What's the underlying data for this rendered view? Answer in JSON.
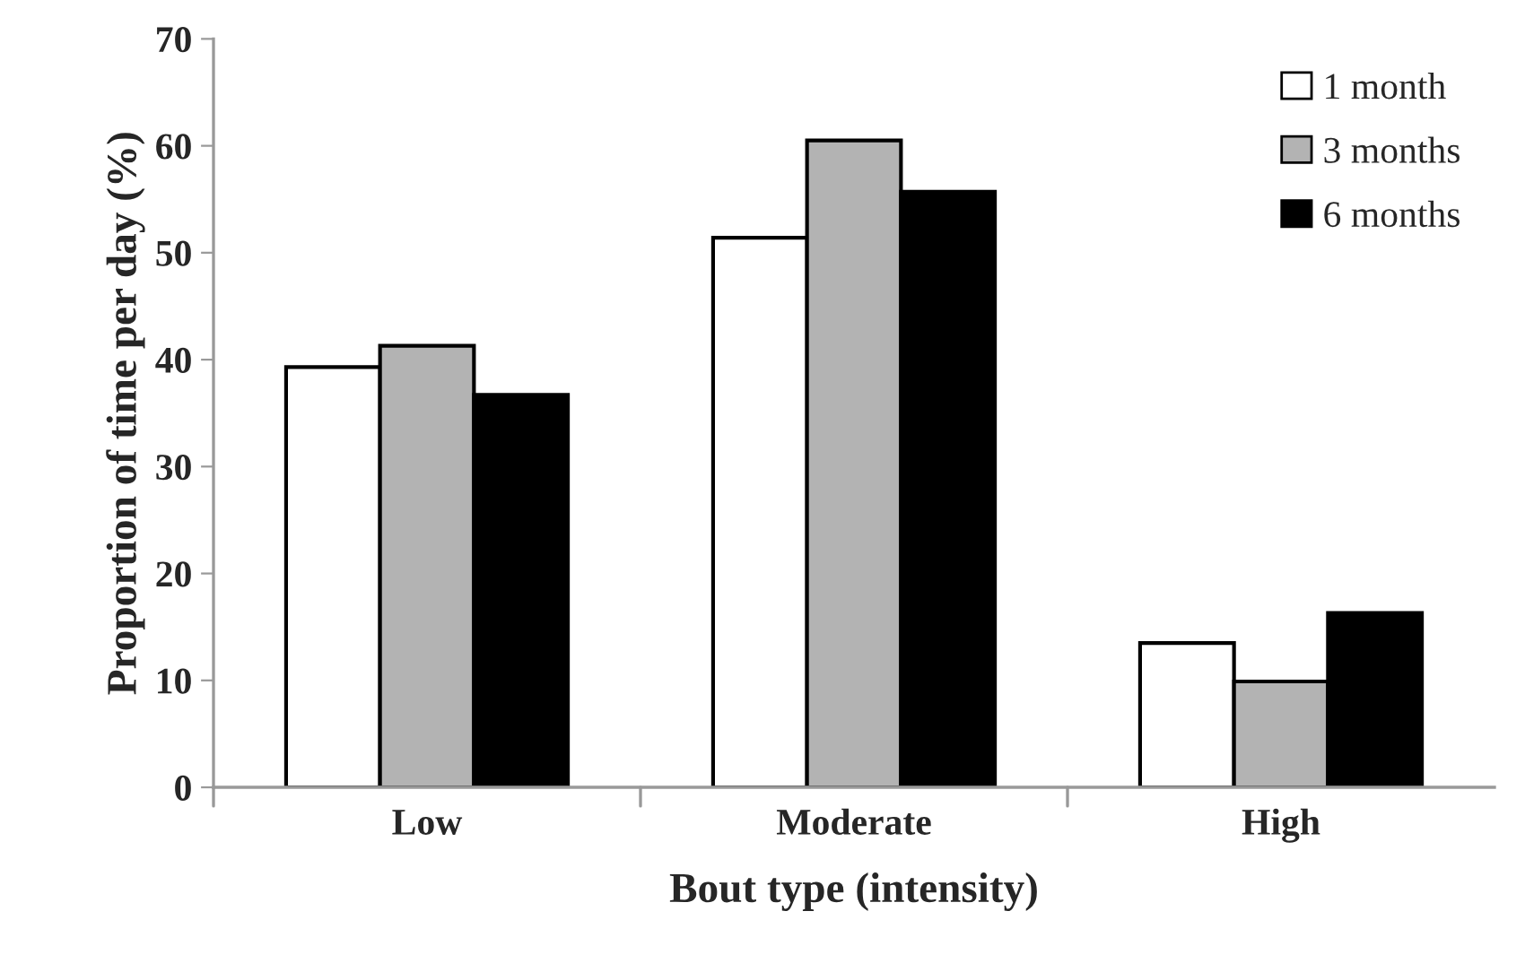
{
  "chart_data": {
    "type": "bar",
    "xlabel": "Bout type (intensity)",
    "ylabel": "Proportion of time per day (%)",
    "categories": [
      "Low",
      "Moderate",
      "High"
    ],
    "series": [
      {
        "name": "1 month",
        "color": "#ffffff",
        "values": [
          39.3,
          51.4,
          13.5
        ]
      },
      {
        "name": "3 months",
        "color": "#b3b3b3",
        "values": [
          41.3,
          60.5,
          9.9
        ]
      },
      {
        "name": "6 months",
        "color": "#000000",
        "values": [
          36.7,
          55.7,
          16.3
        ]
      }
    ],
    "ylim": [
      0,
      70
    ],
    "yticks": [
      0,
      10,
      20,
      30,
      40,
      50,
      60,
      70
    ],
    "grid": false,
    "legend": "top right"
  }
}
